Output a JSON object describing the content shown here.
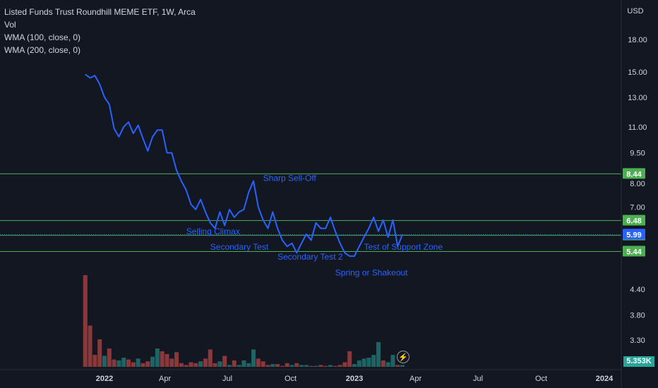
{
  "legend": {
    "title": "Listed Funds Trust Roundhill MEME ETF, 1W, Arca",
    "vol": "Vol",
    "wma100": "WMA (100, close, 0)",
    "wma200": "WMA (200, close, 0)"
  },
  "colors": {
    "background": "#131722",
    "line": "#2962ff",
    "level": "#4caf50",
    "current": "#2962ff",
    "vol_up": "#26a69a",
    "vol_down": "#ef5350"
  },
  "currency": "USD",
  "volume_readout": "5.353K",
  "bolt_icon": "lightning-icon",
  "chart_data": {
    "type": "line",
    "title": "Listed Funds Trust Roundhill MEME ETF, 1W, Arca",
    "ylabel": "USD",
    "y_scale": "log",
    "ylim": [
      3.0,
      19.5
    ],
    "y_ticks": [
      3.3,
      3.8,
      4.4,
      7.0,
      8.0,
      9.5,
      11.0,
      13.0,
      15.0,
      18.0
    ],
    "x_tick_labels": [
      "2022",
      "Apr",
      "Jul",
      "Oct",
      "2023",
      "Apr",
      "Jul",
      "Oct",
      "2024"
    ],
    "x_range": [
      "2021-12-01",
      "2024-05-27"
    ],
    "grid": false,
    "series": [
      {
        "name": "",
        "x": [
          "2021-12-06",
          "2021-12-13",
          "2021-12-20",
          "2021-12-27",
          "2022-01-03",
          "2022-01-10",
          "2022-01-17",
          "2022-01-24",
          "2022-01-31",
          "2022-02-07",
          "2022-02-14",
          "2022-02-21",
          "2022-02-28",
          "2022-03-07",
          "2022-03-14",
          "2022-03-21",
          "2022-03-28",
          "2022-04-04",
          "2022-04-11",
          "2022-04-18",
          "2022-04-25",
          "2022-05-02",
          "2022-05-09",
          "2022-05-16",
          "2022-05-23",
          "2022-05-30",
          "2022-06-06",
          "2022-06-13",
          "2022-06-20",
          "2022-06-27",
          "2022-07-04",
          "2022-07-11",
          "2022-07-18",
          "2022-07-25",
          "2022-08-01",
          "2022-08-08",
          "2022-08-15",
          "2022-08-22",
          "2022-08-29",
          "2022-09-05",
          "2022-09-12",
          "2022-09-19",
          "2022-09-26",
          "2022-10-03",
          "2022-10-10",
          "2022-10-17",
          "2022-10-24",
          "2022-10-31",
          "2022-11-07",
          "2022-11-14",
          "2022-11-21",
          "2022-11-28",
          "2022-12-05",
          "2022-12-12",
          "2022-12-19",
          "2022-12-26",
          "2023-01-02",
          "2023-01-09",
          "2023-01-16",
          "2023-01-23",
          "2023-01-30",
          "2023-02-06",
          "2023-02-13",
          "2023-02-20",
          "2023-02-27",
          "2023-03-06",
          "2023-03-13"
        ],
        "values": [
          14.8,
          14.5,
          14.7,
          14.0,
          13.0,
          12.5,
          10.9,
          10.4,
          11.0,
          11.3,
          10.6,
          11.1,
          10.3,
          9.6,
          10.4,
          10.8,
          10.8,
          9.5,
          9.5,
          8.6,
          8.1,
          7.7,
          7.1,
          6.9,
          7.3,
          6.8,
          6.4,
          6.2,
          6.8,
          6.3,
          6.9,
          6.6,
          6.8,
          6.9,
          7.6,
          8.1,
          7.0,
          6.5,
          6.2,
          6.8,
          6.2,
          5.8,
          5.6,
          5.7,
          5.4,
          5.7,
          6.0,
          5.8,
          6.4,
          6.2,
          6.2,
          6.6,
          6.1,
          5.7,
          5.4,
          5.3,
          5.3,
          5.6,
          5.9,
          6.2,
          6.6,
          6.1,
          6.5,
          5.9,
          6.5,
          5.6,
          5.99
        ]
      }
    ],
    "horizontal_levels": [
      8.44,
      6.48,
      5.96,
      5.44
    ],
    "current_price": 5.99,
    "annotations": [
      {
        "text": "Sharp Sell-Off",
        "x": "2022-08-22",
        "y": 8.1
      },
      {
        "text": "Selling Climax",
        "x": "2022-05-02",
        "y": 6.0
      },
      {
        "text": "Secondary Test",
        "x": "2022-06-06",
        "y": 5.5
      },
      {
        "text": "Secondary Test 2",
        "x": "2022-09-12",
        "y": 5.2
      },
      {
        "text": "Spring or Shakeout",
        "x": "2022-12-05",
        "y": 4.75
      },
      {
        "text": "Test of Support Zone",
        "x": "2023-01-16",
        "y": 5.5
      }
    ],
    "volume": {
      "values": [
        1.0,
        0.45,
        0.13,
        0.3,
        0.12,
        0.2,
        0.08,
        0.07,
        0.1,
        0.08,
        0.05,
        0.09,
        0.04,
        0.06,
        0.11,
        0.2,
        0.17,
        0.14,
        0.09,
        0.16,
        0.04,
        0.02,
        0.05,
        0.04,
        0.06,
        0.09,
        0.19,
        0.04,
        0.06,
        0.12,
        0.02,
        0.07,
        0.02,
        0.07,
        0.04,
        0.19,
        0.09,
        0.06,
        0.02,
        0.03,
        0.03,
        0.01,
        0.04,
        0.02,
        0.04,
        0.02,
        0.02,
        0.01,
        0.01,
        0.02,
        0.01,
        0.02,
        0.01,
        0.02,
        0.05,
        0.17,
        0.03,
        0.07,
        0.09,
        0.1,
        0.13,
        0.27,
        0.07,
        0.05,
        0.13,
        0.02,
        0.02
      ],
      "up": [
        false,
        false,
        false,
        false,
        true,
        false,
        false,
        true,
        true,
        false,
        false,
        true,
        false,
        false,
        true,
        true,
        false,
        false,
        false,
        false,
        false,
        false,
        false,
        false,
        true,
        false,
        false,
        false,
        true,
        false,
        true,
        false,
        true,
        true,
        true,
        true,
        false,
        false,
        false,
        true,
        false,
        false,
        false,
        true,
        false,
        true,
        true,
        false,
        true,
        false,
        false,
        true,
        false,
        false,
        false,
        false,
        true,
        true,
        true,
        true,
        true,
        true,
        false,
        true,
        true,
        false,
        true
      ]
    }
  }
}
